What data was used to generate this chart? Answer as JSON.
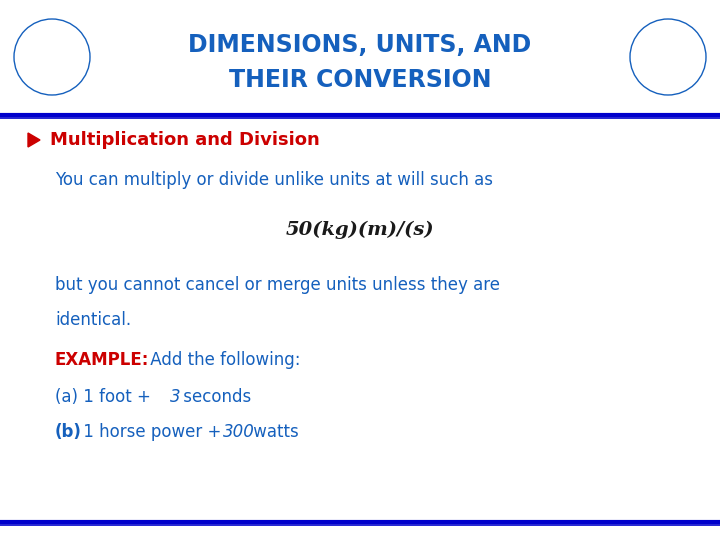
{
  "title_line1": "DIMENSIONS, UNITS, AND",
  "title_line2": "THEIR CONVERSION",
  "title_color": "#1560bd",
  "background_color": "#ffffff",
  "line_color": "#0000cc",
  "bullet_color": "#cc0000",
  "bullet_text": "Multiplication and Division",
  "bullet_text_color": "#cc0000",
  "body_color": "#1560bd",
  "example_label_color": "#cc0000",
  "formula_color": "#1a1a1a",
  "title_fs": 17,
  "bullet_fs": 13,
  "body_fs": 12
}
